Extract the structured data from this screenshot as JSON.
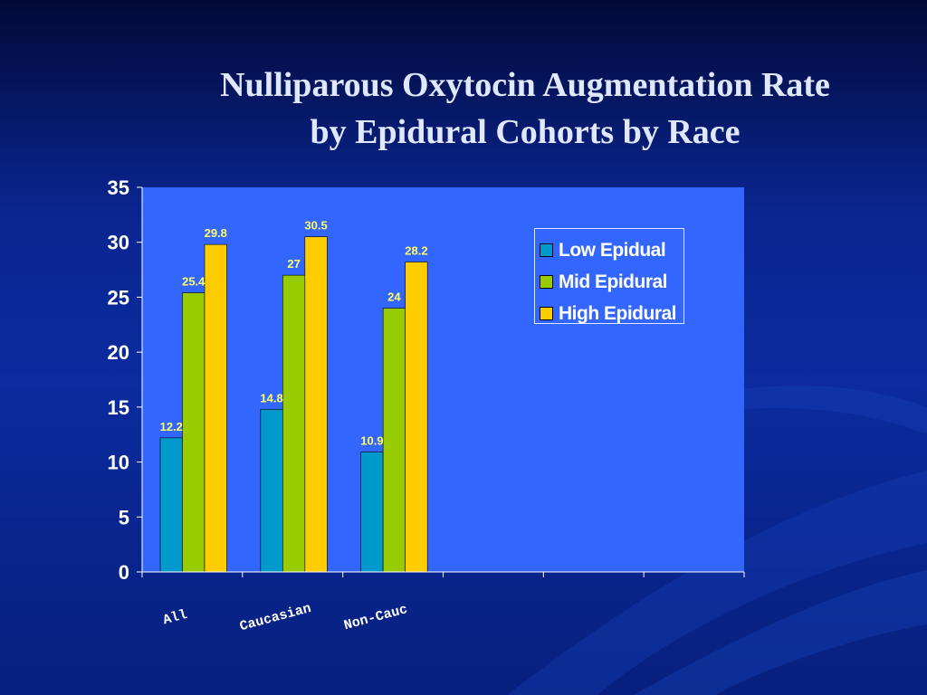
{
  "slide": {
    "title_line1": "Nulliparous Oxytocin Augmentation Rate",
    "title_line2": "by Epidural Cohorts  by  Race"
  },
  "colors": {
    "plot_area": "#3366ff",
    "low": "#0099cc",
    "mid": "#99cc00",
    "high": "#ffcc00",
    "data_label": "#ffff66"
  },
  "chart_data": {
    "type": "bar",
    "categories": [
      "All",
      "Caucasian",
      "Non-Cauc"
    ],
    "category_slots": 6,
    "series": [
      {
        "name": "Low Epidual",
        "values": [
          12.2,
          14.8,
          10.9
        ],
        "color": "#0099cc"
      },
      {
        "name": "Mid Epidural",
        "values": [
          25.4,
          27,
          24
        ],
        "color": "#99cc00"
      },
      {
        "name": "High Epidural",
        "values": [
          29.8,
          30.5,
          28.2
        ],
        "color": "#ffcc00"
      }
    ],
    "ylim": [
      0,
      35
    ],
    "yticks": [
      0,
      5,
      10,
      15,
      20,
      25,
      30,
      35
    ],
    "title": "",
    "xlabel": "",
    "ylabel": "",
    "grid": false,
    "legend": "top-right",
    "data_labels": true
  }
}
